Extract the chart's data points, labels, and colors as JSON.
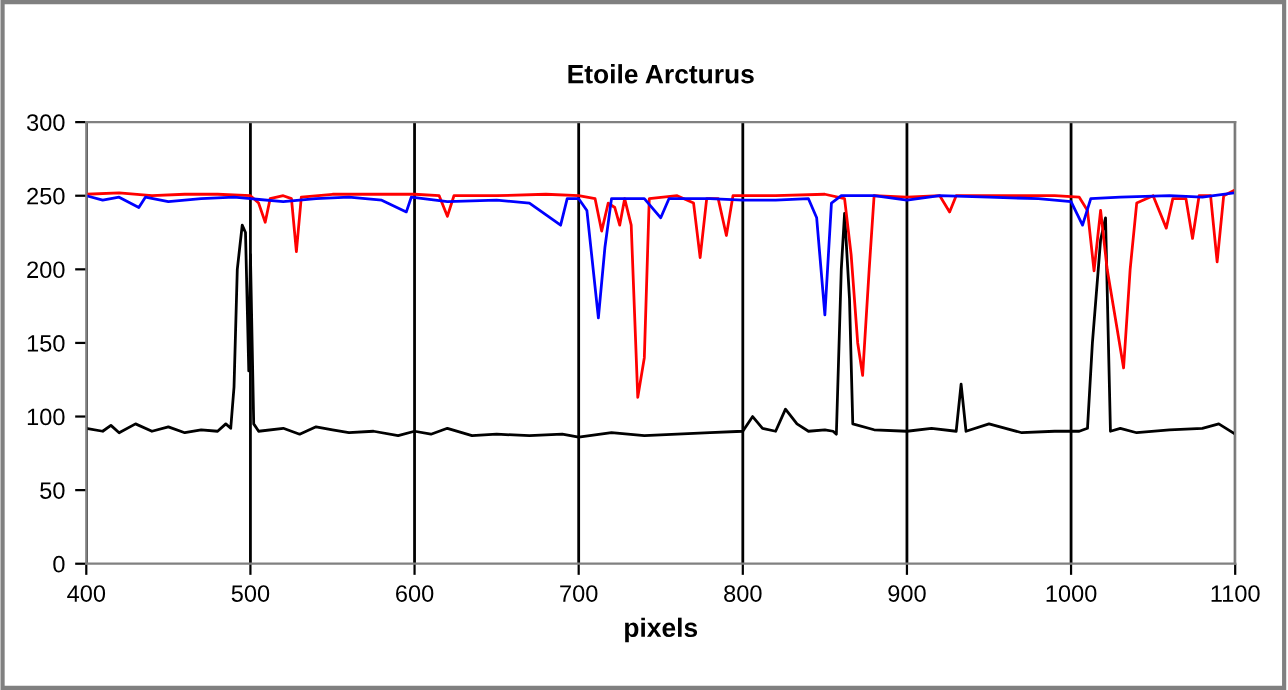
{
  "chart_data": {
    "type": "line",
    "title": "Etoile Arcturus",
    "xlabel": "pixels",
    "xlim": [
      400,
      1100
    ],
    "xticks": [
      400,
      500,
      600,
      700,
      800,
      900,
      1000,
      1100
    ],
    "ylim": [
      0,
      300
    ],
    "yticks": [
      0,
      50,
      100,
      150,
      200,
      250,
      300
    ],
    "grid": "x",
    "marker": "none",
    "line_style": "solid",
    "series": [
      {
        "color": "#000000",
        "x": [
          400,
          410,
          415,
          420,
          430,
          440,
          450,
          460,
          470,
          480,
          485,
          488,
          490,
          492,
          495,
          497,
          499,
          500,
          502,
          505,
          520,
          530,
          540,
          550,
          560,
          575,
          590,
          600,
          610,
          620,
          635,
          650,
          670,
          690,
          700,
          720,
          740,
          760,
          780,
          800,
          806,
          812,
          820,
          826,
          833,
          840,
          850,
          855,
          857,
          860,
          862,
          865,
          867,
          880,
          900,
          915,
          930,
          933,
          936,
          950,
          970,
          990,
          1005,
          1010,
          1013,
          1018,
          1021,
          1024,
          1030,
          1040,
          1060,
          1080,
          1090,
          1100
        ],
        "values": [
          92,
          90,
          94,
          89,
          95,
          90,
          93,
          89,
          91,
          90,
          95,
          92,
          120,
          200,
          230,
          225,
          131,
          210,
          95,
          90,
          92,
          88,
          93,
          91,
          89,
          90,
          87,
          90,
          88,
          92,
          87,
          88,
          87,
          88,
          86,
          89,
          87,
          88,
          89,
          90,
          100,
          92,
          90,
          105,
          95,
          90,
          91,
          90,
          88,
          200,
          238,
          180,
          95,
          91,
          90,
          92,
          90,
          122,
          90,
          95,
          89,
          90,
          90,
          92,
          150,
          220,
          235,
          90,
          92,
          89,
          91,
          92,
          95,
          88
        ]
      },
      {
        "color": "#ff0000",
        "x": [
          400,
          420,
          440,
          460,
          480,
          500,
          505,
          509,
          512,
          520,
          525,
          528,
          531,
          550,
          580,
          600,
          615,
          620,
          624,
          650,
          680,
          700,
          710,
          714,
          718,
          722,
          725,
          728,
          732,
          736,
          740,
          743,
          760,
          770,
          774,
          778,
          785,
          790,
          794,
          820,
          850,
          862,
          866,
          870,
          873,
          877,
          880,
          900,
          920,
          926,
          930,
          960,
          990,
          1005,
          1010,
          1014,
          1018,
          1022,
          1028,
          1032,
          1036,
          1040,
          1050,
          1058,
          1062,
          1070,
          1074,
          1078,
          1085,
          1089,
          1093,
          1100
        ],
        "values": [
          251,
          252,
          250,
          251,
          251,
          250,
          245,
          232,
          248,
          250,
          248,
          212,
          249,
          251,
          251,
          251,
          250,
          236,
          250,
          250,
          251,
          250,
          248,
          226,
          245,
          242,
          230,
          248,
          230,
          113,
          140,
          248,
          250,
          245,
          208,
          248,
          248,
          223,
          250,
          250,
          251,
          248,
          210,
          150,
          128,
          200,
          250,
          249,
          250,
          239,
          250,
          250,
          250,
          249,
          240,
          199,
          240,
          200,
          160,
          133,
          200,
          245,
          250,
          228,
          248,
          248,
          221,
          250,
          250,
          205,
          250,
          254
        ]
      },
      {
        "color": "#0000ff",
        "x": [
          400,
          410,
          420,
          432,
          436,
          450,
          470,
          490,
          500,
          520,
          540,
          560,
          580,
          595,
          598,
          620,
          650,
          670,
          689,
          693,
          700,
          705,
          712,
          716,
          720,
          740,
          750,
          755,
          780,
          800,
          820,
          840,
          845,
          850,
          854,
          860,
          880,
          900,
          920,
          950,
          980,
          1000,
          1007,
          1012,
          1030,
          1060,
          1080,
          1100
        ],
        "values": [
          250,
          247,
          249,
          242,
          249,
          246,
          248,
          249,
          248,
          246,
          248,
          249,
          247,
          239,
          249,
          246,
          247,
          245,
          230,
          248,
          248,
          240,
          167,
          215,
          248,
          248,
          235,
          248,
          248,
          247,
          247,
          248,
          235,
          169,
          245,
          250,
          250,
          247,
          250,
          249,
          248,
          246,
          230,
          248,
          249,
          250,
          249,
          252
        ]
      }
    ]
  }
}
